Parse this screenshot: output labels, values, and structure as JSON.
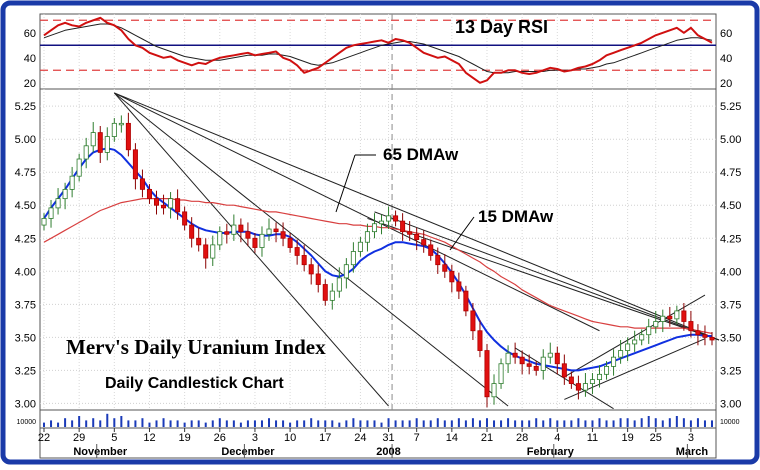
{
  "chart_data": {
    "type": "candlestick",
    "title": "Merv's Daily Uranium Index",
    "subtitle": "Daily Candlestick Chart",
    "rsi_title": "13 Day RSI",
    "annotations": [
      {
        "text": "65 DMAw",
        "target": "ma65"
      },
      {
        "text": "15 DMAw",
        "target": "ma15"
      }
    ],
    "price_ticks": [
      "3.00",
      "3.25",
      "3.50",
      "3.75",
      "4.00",
      "4.25",
      "4.50",
      "4.75",
      "5.00",
      "5.25"
    ],
    "price_tick_values": [
      3.0,
      3.25,
      3.5,
      3.75,
      4.0,
      4.25,
      4.5,
      4.75,
      5.0,
      5.25
    ],
    "price_range": [
      2.95,
      5.38
    ],
    "rsi_ticks": [
      "20",
      "40",
      "60"
    ],
    "rsi_tick_values": [
      20,
      40,
      60
    ],
    "rsi_range": [
      15,
      75
    ],
    "rsi_reference_lines": [
      30,
      50,
      70
    ],
    "volume_label": "10000",
    "day_ticks": [
      {
        "label": "22",
        "day": 0
      },
      {
        "label": "29",
        "day": 5
      },
      {
        "label": "5",
        "day": 10
      },
      {
        "label": "12",
        "day": 15
      },
      {
        "label": "19",
        "day": 20
      },
      {
        "label": "26",
        "day": 25
      },
      {
        "label": "3",
        "day": 30
      },
      {
        "label": "10",
        "day": 35
      },
      {
        "label": "17",
        "day": 40
      },
      {
        "label": "24",
        "day": 45
      },
      {
        "label": "31",
        "day": 49
      },
      {
        "label": "7",
        "day": 53
      },
      {
        "label": "14",
        "day": 58
      },
      {
        "label": "21",
        "day": 63
      },
      {
        "label": "28",
        "day": 68
      },
      {
        "label": "4",
        "day": 73
      },
      {
        "label": "11",
        "day": 78
      },
      {
        "label": "19",
        "day": 83
      },
      {
        "label": "25",
        "day": 87
      },
      {
        "label": "3",
        "day": 92
      }
    ],
    "month_labels": [
      {
        "label": "November",
        "day": 8
      },
      {
        "label": "December",
        "day": 29
      },
      {
        "label": "2008",
        "day": 49
      },
      {
        "label": "February",
        "day": 72
      },
      {
        "label": "March",
        "day": 93
      }
    ],
    "year_divider_day": 49,
    "days_shown": 96,
    "closes": [
      4.4,
      4.48,
      4.55,
      4.62,
      4.72,
      4.85,
      4.95,
      5.05,
      4.9,
      5.02,
      5.12,
      5.12,
      4.92,
      4.7,
      4.62,
      4.55,
      4.5,
      4.48,
      4.55,
      4.45,
      4.35,
      4.25,
      4.2,
      4.1,
      4.2,
      4.3,
      4.28,
      4.35,
      4.3,
      4.25,
      4.18,
      4.28,
      4.32,
      4.3,
      4.25,
      4.18,
      4.12,
      4.05,
      3.98,
      3.9,
      3.78,
      3.85,
      3.95,
      4.05,
      4.15,
      4.22,
      4.3,
      4.36,
      4.38,
      4.42,
      4.38,
      4.3,
      4.28,
      4.24,
      4.2,
      4.12,
      4.05,
      4.0,
      3.92,
      3.85,
      3.7,
      3.55,
      3.4,
      3.05,
      3.15,
      3.3,
      3.38,
      3.35,
      3.3,
      3.28,
      3.25,
      3.35,
      3.38,
      3.3,
      3.2,
      3.15,
      3.1,
      3.15,
      3.18,
      3.22,
      3.28,
      3.35,
      3.4,
      3.45,
      3.48,
      3.52,
      3.58,
      3.62,
      3.66,
      3.64,
      3.7,
      3.62,
      3.55,
      3.52,
      3.5,
      3.48
    ],
    "ma15": [
      4.4,
      4.48,
      4.55,
      4.62,
      4.7,
      4.78,
      4.85,
      4.9,
      4.92,
      4.93,
      4.92,
      4.88,
      4.82,
      4.76,
      4.7,
      4.62,
      4.56,
      4.52,
      4.48,
      4.44,
      4.4,
      4.36,
      4.33,
      4.31,
      4.3,
      4.29,
      4.29,
      4.3,
      4.3,
      4.3,
      4.28,
      4.27,
      4.27,
      4.28,
      4.28,
      4.26,
      4.22,
      4.17,
      4.12,
      4.06,
      4.0,
      3.97,
      3.96,
      3.98,
      4.02,
      4.08,
      4.12,
      4.15,
      4.17,
      4.2,
      4.22,
      4.22,
      4.21,
      4.2,
      4.19,
      4.17,
      4.12,
      4.06,
      3.99,
      3.91,
      3.82,
      3.72,
      3.62,
      3.54,
      3.48,
      3.43,
      3.39,
      3.36,
      3.34,
      3.32,
      3.3,
      3.29,
      3.28,
      3.27,
      3.26,
      3.25,
      3.25,
      3.26,
      3.27,
      3.28,
      3.3,
      3.32,
      3.34,
      3.36,
      3.38,
      3.4,
      3.42,
      3.44,
      3.46,
      3.48,
      3.5,
      3.51,
      3.52,
      3.52,
      3.51,
      3.51
    ],
    "ma65": [
      4.22,
      4.25,
      4.28,
      4.31,
      4.34,
      4.37,
      4.4,
      4.43,
      4.46,
      4.48,
      4.5,
      4.52,
      4.53,
      4.54,
      4.55,
      4.55,
      4.55,
      4.55,
      4.55,
      4.54,
      4.54,
      4.53,
      4.53,
      4.52,
      4.52,
      4.51,
      4.5,
      4.5,
      4.49,
      4.48,
      4.47,
      4.46,
      4.45,
      4.45,
      4.44,
      4.43,
      4.42,
      4.41,
      4.4,
      4.39,
      4.38,
      4.37,
      4.36,
      4.36,
      4.35,
      4.35,
      4.34,
      4.34,
      4.33,
      4.33,
      4.32,
      4.31,
      4.3,
      4.29,
      4.28,
      4.26,
      4.24,
      4.22,
      4.19,
      4.16,
      4.13,
      4.1,
      4.07,
      4.03,
      4.0,
      3.96,
      3.93,
      3.9,
      3.86,
      3.83,
      3.8,
      3.77,
      3.74,
      3.72,
      3.7,
      3.68,
      3.66,
      3.64,
      3.62,
      3.61,
      3.6,
      3.59,
      3.58,
      3.58,
      3.57,
      3.57,
      3.57,
      3.57,
      3.57,
      3.57,
      3.57,
      3.57,
      3.56,
      3.55,
      3.54,
      3.53
    ],
    "rsi": [
      58,
      62,
      66,
      68,
      66,
      65,
      68,
      70,
      72,
      68,
      66,
      62,
      55,
      50,
      48,
      44,
      42,
      40,
      41,
      38,
      36,
      34,
      36,
      35,
      38,
      40,
      41,
      42,
      43,
      44,
      42,
      43,
      44,
      45,
      40,
      38,
      34,
      28,
      30,
      32,
      36,
      40,
      44,
      48,
      50,
      51,
      52,
      53,
      54,
      52,
      55,
      54,
      52,
      48,
      44,
      42,
      40,
      41,
      38,
      35,
      28,
      24,
      20,
      22,
      28,
      28,
      30,
      30,
      28,
      27,
      28,
      30,
      32,
      31,
      29,
      30,
      32,
      33,
      35,
      38,
      42,
      44,
      46,
      48,
      50,
      52,
      55,
      58,
      60,
      62,
      64,
      60,
      64,
      58,
      55,
      52
    ],
    "rsi_avg": [
      56,
      58,
      60,
      62,
      63,
      64,
      65,
      66,
      67,
      67,
      66,
      64,
      61,
      58,
      55,
      52,
      49,
      47,
      45,
      43,
      41,
      40,
      39,
      38,
      38,
      38,
      39,
      40,
      41,
      42,
      42,
      42,
      43,
      43,
      42,
      41,
      39,
      37,
      35,
      34,
      35,
      36,
      38,
      40,
      42,
      44,
      46,
      48,
      50,
      51,
      52,
      53,
      53,
      52,
      51,
      49,
      47,
      45,
      43,
      41,
      38,
      35,
      32,
      29,
      28,
      28,
      28,
      29,
      29,
      29,
      29,
      29,
      30,
      30,
      30,
      30,
      31,
      31,
      32,
      33,
      35,
      36,
      38,
      40,
      42,
      44,
      46,
      48,
      50,
      52,
      54,
      55,
      56,
      56,
      55,
      54
    ],
    "volumes": [
      2,
      3,
      2,
      4,
      3,
      5,
      3,
      4,
      3,
      6,
      4,
      5,
      3,
      3,
      4,
      2,
      3,
      4,
      3,
      3,
      2,
      3,
      3,
      2,
      3,
      4,
      3,
      3,
      2,
      3,
      3,
      3,
      4,
      3,
      3,
      2,
      3,
      3,
      4,
      3,
      3,
      3,
      2,
      3,
      4,
      3,
      3,
      3,
      2,
      4,
      3,
      3,
      3,
      4,
      3,
      3,
      4,
      3,
      3,
      4,
      3,
      4,
      3,
      4,
      3,
      3,
      4,
      3,
      3,
      3,
      4,
      3,
      4,
      3,
      3,
      3,
      4,
      3,
      3,
      4,
      3,
      3,
      4,
      4,
      3,
      4,
      5,
      4,
      3,
      4,
      5,
      4,
      3,
      4,
      3,
      3
    ],
    "trendlines": [
      {
        "from": [
          10,
          5.35
        ],
        "to": [
          79,
          3.55
        ]
      },
      {
        "from": [
          10,
          5.35
        ],
        "to": [
          66,
          2.98
        ]
      },
      {
        "from": [
          10,
          5.35
        ],
        "to": [
          49,
          2.98
        ]
      },
      {
        "from": [
          10,
          5.35
        ],
        "to": [
          96,
          3.48
        ]
      },
      {
        "from": [
          46,
          4.4
        ],
        "to": [
          96,
          3.48
        ]
      },
      {
        "from": [
          47,
          4.45
        ],
        "to": [
          95,
          3.5
        ]
      },
      {
        "from": [
          74,
          3.03
        ],
        "to": [
          94,
          3.49
        ]
      },
      {
        "from": [
          74,
          3.2
        ],
        "to": [
          94,
          3.82
        ]
      },
      {
        "from": [
          67,
          3.42
        ],
        "to": [
          81,
          2.96
        ]
      }
    ]
  }
}
